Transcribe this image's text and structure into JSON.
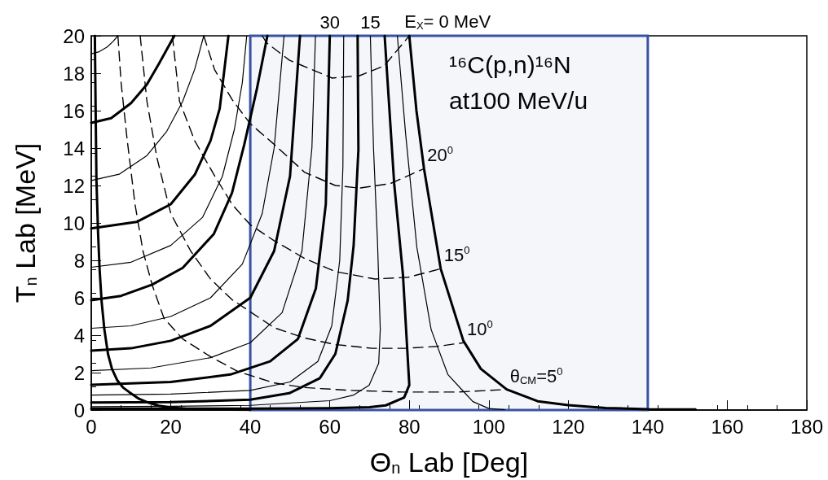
{
  "chart_data": {
    "type": "line",
    "title": "¹⁶C(p,n)¹⁶N",
    "subtitle": "at100 MeV/u",
    "xlabel": "Θ$_{n}$ Lab [Deg]",
    "ylabel": "T$_{n}$ Lab [MeV]",
    "xlim": [
      0,
      180
    ],
    "xticks": [
      0,
      20,
      40,
      60,
      80,
      100,
      120,
      140,
      160,
      180
    ],
    "ylim": [
      0,
      20
    ],
    "yticks": [
      0,
      2,
      4,
      6,
      8,
      10,
      12,
      14,
      16,
      18,
      20
    ],
    "grid": false,
    "marker": "none",
    "bands": [
      {
        "axis": "x",
        "from": 40,
        "to": 140,
        "color": "#3953a4"
      }
    ],
    "annotations": [
      {
        "text": "30",
        "x": 60,
        "y": 20
      },
      {
        "text": "15",
        "x": 70.2,
        "y": 20
      },
      {
        "text": "E$_{X}$= 0 MeV",
        "x": 80,
        "y": 20
      },
      {
        "text": "20$^{0}$",
        "x": 83.7,
        "y": 12.9
      },
      {
        "text": "15$^{0}$",
        "x": 87.9,
        "y": 7.55
      },
      {
        "text": "10$^{0}$",
        "x": 93.7,
        "y": 3.6
      },
      {
        "text": "θ$_{CM}$=5$^{0}$",
        "x": 104.5,
        "y": 1.1
      }
    ],
    "series": [
      {
        "color": "#000000",
        "x": [
          80,
          81.8,
          83.7,
          87.9,
          93.6,
          98,
          104.5,
          112.3,
          120,
          129.4,
          140,
          152
        ],
        "values": [
          20,
          16,
          12.9,
          7.55,
          3.7,
          2.2,
          1.1,
          0.47,
          0.26,
          0.11,
          0.04,
          0.03
        ]
      },
      {
        "color": "#000000",
        "x": [
          77,
          79.1,
          81.9,
          85.5,
          89.7,
          93.6,
          96,
          100,
          104
        ],
        "values": [
          20,
          14.7,
          8.7,
          4.3,
          1.9,
          1.0,
          0.45,
          0.08,
          0.02
        ]
      },
      {
        "color": "#000000",
        "x": [
          0,
          40,
          60,
          70,
          74.1,
          78.7,
          80,
          79.4,
          78.4,
          76.2,
          73.8
        ],
        "values": [
          0.08,
          0.08,
          0.1,
          0.15,
          0.25,
          0.67,
          1.33,
          3.55,
          7.25,
          12.1,
          20
        ]
      },
      {
        "color": "#000000",
        "x": [
          0,
          20,
          40,
          60,
          66,
          69.9,
          72.3,
          72.7,
          72,
          71,
          70.2
        ],
        "values": [
          0.18,
          0.2,
          0.25,
          0.5,
          0.8,
          1.33,
          2.5,
          4.3,
          9,
          14,
          20
        ]
      },
      {
        "color": "#000000",
        "x": [
          0,
          20,
          40,
          49.8,
          57.5,
          61.4,
          64.5,
          66,
          67.2,
          67
        ],
        "values": [
          0.4,
          0.42,
          0.55,
          0.9,
          1.7,
          3.0,
          5.85,
          8.8,
          13.9,
          20
        ]
      },
      {
        "color": "#000000",
        "x": [
          0,
          20,
          40,
          50,
          57,
          60.5,
          62.5,
          63.3,
          63.5
        ],
        "values": [
          0.8,
          0.85,
          1.05,
          1.5,
          2.6,
          4.5,
          8,
          13,
          20
        ]
      },
      {
        "color": "#000000",
        "x": [
          0,
          20,
          35,
          45,
          52,
          56.5,
          59,
          60
        ],
        "values": [
          1.35,
          1.5,
          1.9,
          2.6,
          3.8,
          6.5,
          11,
          20
        ]
      },
      {
        "color": "#000000",
        "x": [
          0,
          15,
          30,
          40,
          48,
          53,
          55.5,
          56.4
        ],
        "values": [
          2.1,
          2.25,
          2.8,
          3.6,
          5.2,
          8.5,
          14,
          20
        ]
      },
      {
        "color": "#000000",
        "x": [
          0,
          10,
          20,
          30,
          40,
          46,
          50,
          52.5
        ],
        "values": [
          3.17,
          3.3,
          3.7,
          4.5,
          6.0,
          8.5,
          12.5,
          20
        ]
      },
      {
        "color": "#000000",
        "x": [
          0,
          10,
          20,
          30,
          38,
          43,
          46,
          48.5
        ],
        "values": [
          4.37,
          4.5,
          5.0,
          6.0,
          7.8,
          10.5,
          14,
          20
        ]
      },
      {
        "color": "#000000",
        "x": [
          0,
          7.5,
          15.3,
          23,
          30.8,
          35.4,
          38.5,
          41.6,
          44.3
        ],
        "values": [
          5.87,
          6.1,
          6.7,
          7.6,
          9.4,
          11.6,
          14.2,
          17.1,
          20
        ]
      },
      {
        "color": "#000000",
        "x": [
          0,
          10,
          20,
          28,
          33,
          36,
          38,
          39.1
        ],
        "values": [
          7.63,
          7.9,
          8.8,
          10.3,
          12.5,
          15,
          17.5,
          20
        ]
      },
      {
        "color": "#000000",
        "x": [
          0,
          11.4,
          20,
          26.1,
          30,
          32.3,
          34.5
        ],
        "values": [
          9.71,
          10.05,
          11.0,
          12.6,
          14.4,
          16.1,
          20
        ]
      },
      {
        "color": "#000000",
        "x": [
          0,
          7,
          14,
          19,
          23,
          26,
          28.3
        ],
        "values": [
          12.27,
          12.6,
          13.6,
          14.9,
          16.5,
          18.2,
          20
        ]
      },
      {
        "color": "#000000",
        "x": [
          0,
          5,
          10,
          14,
          17,
          20.9
        ],
        "values": [
          15.35,
          15.6,
          16.4,
          17.4,
          18.5,
          20
        ]
      },
      {
        "color": "#000000",
        "x": [
          0,
          2,
          4,
          5.5,
          6.7
        ],
        "values": [
          19.04,
          19.15,
          19.4,
          19.7,
          20
        ]
      },
      {
        "color": "#000000",
        "x": [
          0.9,
          1.1,
          1.3,
          1.7,
          2.1,
          2.6,
          3.3,
          4.2,
          5.2,
          6.5,
          8,
          9.6,
          12,
          14.3,
          17,
          19.8,
          24,
          28,
          40
        ],
        "values": [
          20,
          16,
          12.3,
          9.5,
          7.5,
          5.8,
          4.3,
          3,
          2.2,
          1.6,
          1.2,
          0.95,
          0.6,
          0.4,
          0.23,
          0.14,
          0.07,
          0.03,
          0.01
        ]
      },
      {
        "color": "#000000",
        "line_style": "dashed",
        "x": [
          6.7,
          7.5,
          9,
          11,
          13,
          15.3,
          18.3,
          23,
          30,
          37,
          46,
          53.7,
          65.2,
          78.3,
          92.2,
          104.5
        ],
        "values": [
          20,
          17.5,
          14.5,
          11,
          8.5,
          6.7,
          4.9,
          3.8,
          2.85,
          2.05,
          1.45,
          1.2,
          1.05,
          0.96,
          0.96,
          1.1
        ]
      },
      {
        "color": "#000000",
        "line_style": "dashed",
        "x": [
          12.3,
          14,
          16.5,
          20,
          25,
          30,
          35.4,
          40,
          46,
          53.7,
          61.4,
          70.6,
          79.1,
          87,
          93.7
        ],
        "values": [
          20,
          16.5,
          13.5,
          10.5,
          8.5,
          7.0,
          5.9,
          5.25,
          4.4,
          3.85,
          3.5,
          3.3,
          3.3,
          3.4,
          3.6
        ]
      },
      {
        "color": "#000000",
        "line_style": "dashed",
        "x": [
          20.4,
          22.2,
          26,
          30.8,
          35.4,
          40,
          46,
          53.7,
          61.4,
          71.4,
          79.8,
          87.9
        ],
        "values": [
          20,
          16.5,
          14.4,
          12.6,
          11.0,
          9.9,
          9.05,
          8.1,
          7.4,
          7.0,
          7.1,
          7.55
        ]
      },
      {
        "color": "#000000",
        "line_style": "dashed",
        "x": [
          28.3,
          31,
          35.4,
          40,
          46,
          53.7,
          61.4,
          67.5,
          75.2,
          83.7
        ],
        "values": [
          20,
          18.2,
          16.6,
          15.3,
          14.2,
          12.7,
          12.0,
          11.86,
          12.1,
          12.9
        ]
      },
      {
        "color": "#000000",
        "line_style": "dashed",
        "x": [
          43,
          44.1,
          49.8,
          60.6,
          67.5,
          73.7,
          79.8
        ],
        "values": [
          20,
          19.63,
          18.7,
          17.74,
          17.87,
          18.4,
          19.95
        ]
      }
    ]
  }
}
